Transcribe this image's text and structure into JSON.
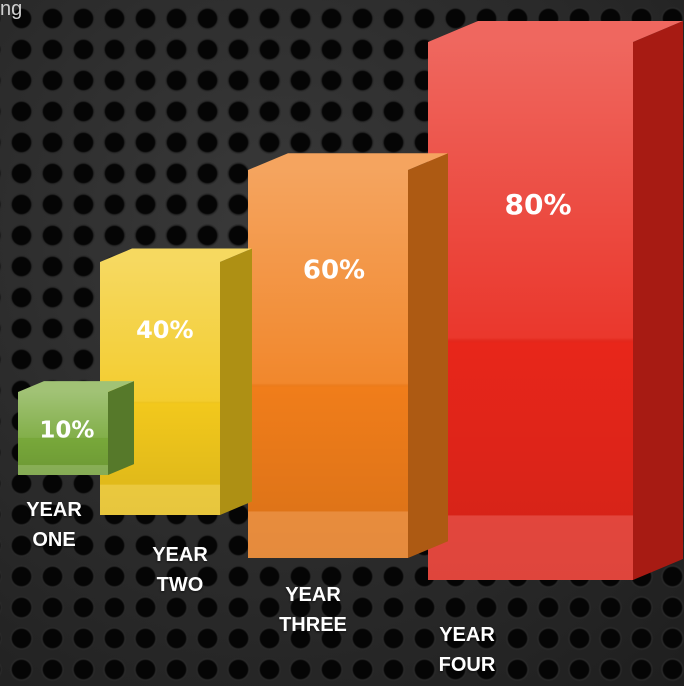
{
  "caption": "ng",
  "chart_data": {
    "type": "bar",
    "title": "",
    "categories": [
      "YEAR ONE",
      "YEAR TWO",
      "YEAR THREE",
      "YEAR FOUR"
    ],
    "values": [
      10,
      40,
      60,
      80
    ],
    "value_labels": [
      "10%",
      "40%",
      "60%",
      "80%"
    ],
    "category_lines": [
      [
        "YEAR",
        "ONE"
      ],
      [
        "YEAR",
        "TWO"
      ],
      [
        "YEAR",
        "THREE"
      ],
      [
        "YEAR",
        "FOUR"
      ]
    ],
    "style": "3d",
    "colors": [
      "#78a83a",
      "#f2c81c",
      "#f07d1a",
      "#e8261a"
    ],
    "ylim": [
      0,
      100
    ],
    "grid": false,
    "legend": "none"
  }
}
